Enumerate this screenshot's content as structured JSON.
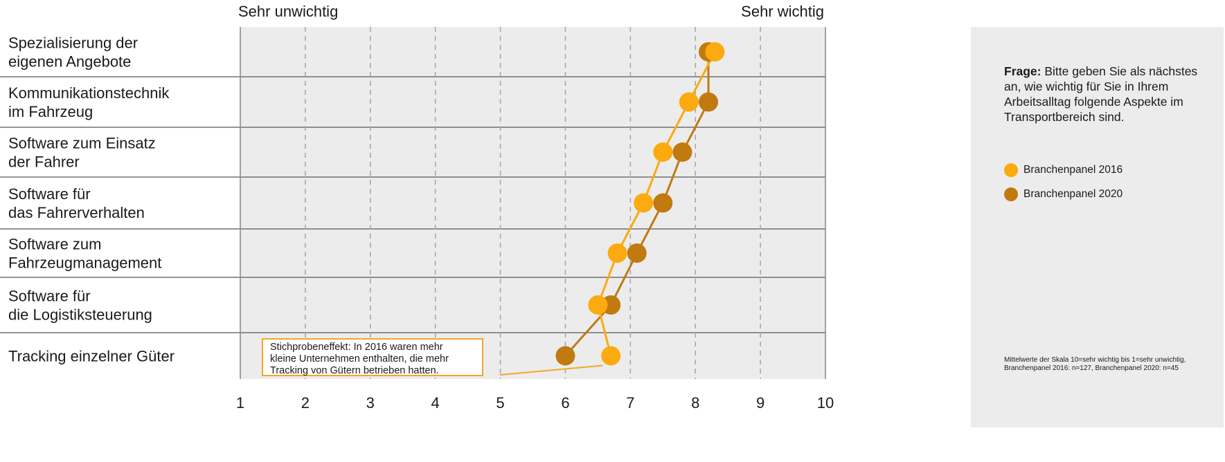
{
  "chart_data": {
    "type": "scatter",
    "scale_min_label": "Sehr unwichtig",
    "scale_max_label": "Sehr wichtig",
    "x_ticks": [
      "1",
      "2",
      "3",
      "4",
      "5",
      "6",
      "7",
      "8",
      "9",
      "10"
    ],
    "xlim": [
      1,
      10
    ],
    "grid": true,
    "categories": [
      [
        "Spezialisierung der",
        "eigenen Angebote"
      ],
      [
        "Kommunikationstechnik",
        "im Fahrzeug"
      ],
      [
        "Software zum Einsatz",
        "der Fahrer"
      ],
      [
        "Software für",
        "das Fahrerverhalten"
      ],
      [
        "Software zum",
        "Fahrzeugmanagement"
      ],
      [
        "Software für",
        "die Logistiksteuerung"
      ],
      [
        "Tracking einzelner Güter"
      ]
    ],
    "series": [
      {
        "name": "Branchenpanel 2020",
        "color": "#c07a10",
        "values": [
          8.2,
          8.2,
          7.8,
          7.5,
          7.1,
          6.7,
          6.0
        ]
      },
      {
        "name": "Branchenpanel 2016",
        "color": "#fbaa0f",
        "values": [
          8.3,
          7.9,
          7.5,
          7.2,
          6.8,
          6.5,
          6.7
        ]
      }
    ],
    "annotation": {
      "lines": [
        "Stichprobeneffekt: In 2016 waren mehr",
        "kleine Unternehmen enthalten, die mehr",
        "Tracking von Gütern betrieben hatten."
      ],
      "target_series": "Branchenpanel 2016",
      "target_category_index": 6
    }
  },
  "panel": {
    "question_label": "Frage:",
    "question_text": " Bitte geben Sie als nächstes an, wie wichtig für Sie in Ihrem Arbeitsalltag folgende Aspekte im Transportbereich sind.",
    "legend": [
      {
        "label": "Branchenpanel 2016",
        "color": "#fbaa0f"
      },
      {
        "label": "Branchenpanel 2020",
        "color": "#c07a10"
      }
    ],
    "footnote": "Mittelwerte der Skala 10=sehr wichtig bis 1=sehr unwichtig, Branchenpanel 2016: n=127, Branchenpanel 2020: n=45"
  }
}
